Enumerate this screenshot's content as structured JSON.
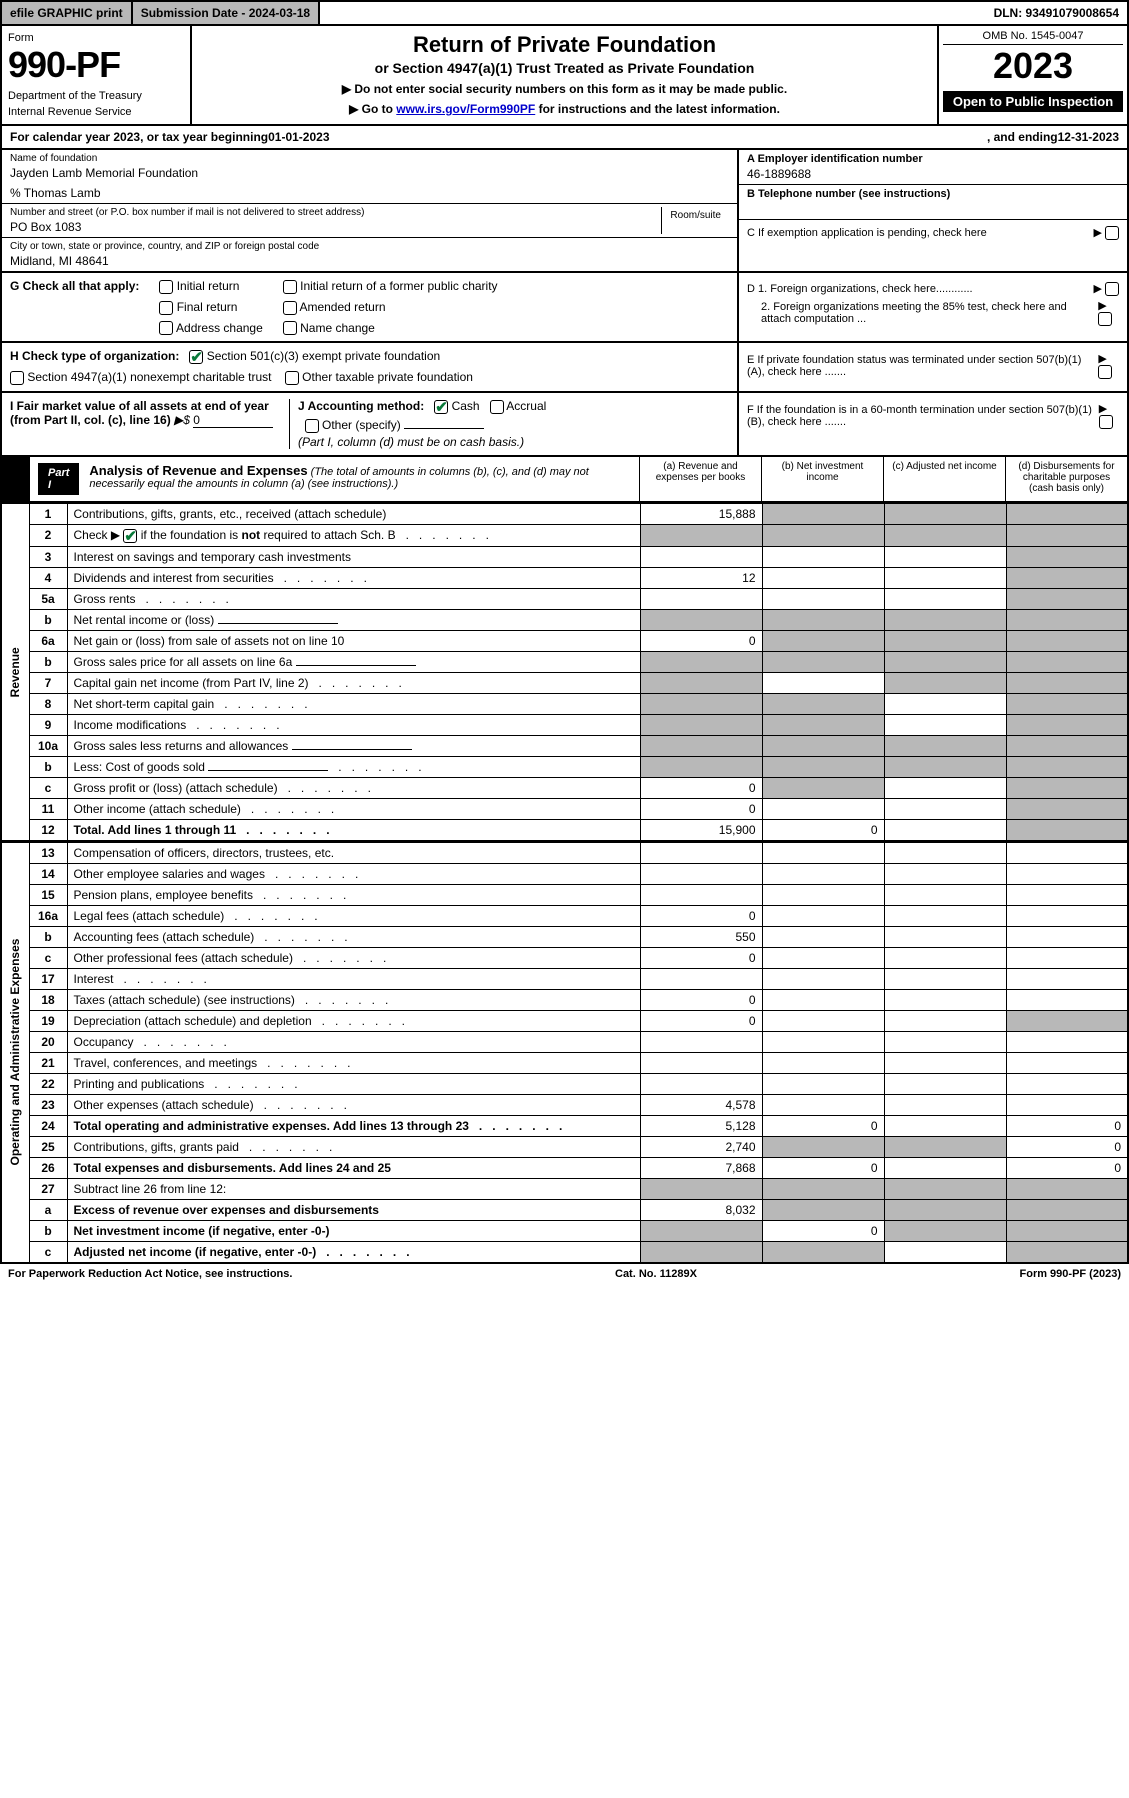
{
  "topbar": {
    "efile": "efile GRAPHIC print",
    "submission": "Submission Date - 2024-03-18",
    "dln": "DLN: 93491079008654"
  },
  "header": {
    "form_label": "Form",
    "form_num": "990-PF",
    "dept": "Department of the Treasury",
    "irs": "Internal Revenue Service",
    "title": "Return of Private Foundation",
    "subtitle": "or Section 4947(a)(1) Trust Treated as Private Foundation",
    "instr1": "▶ Do not enter social security numbers on this form as it may be made public.",
    "instr2_prefix": "▶ Go to ",
    "instr2_link": "www.irs.gov/Form990PF",
    "instr2_suffix": " for instructions and the latest information.",
    "omb": "OMB No. 1545-0047",
    "year": "2023",
    "inspection": "Open to Public Inspection"
  },
  "calyear": {
    "prefix": "For calendar year 2023, or tax year beginning ",
    "begin": "01-01-2023",
    "mid": ", and ending ",
    "end": "12-31-2023"
  },
  "foundation": {
    "name_label": "Name of foundation",
    "name": "Jayden Lamb Memorial Foundation",
    "care_of": "% Thomas Lamb",
    "addr_label": "Number and street (or P.O. box number if mail is not delivered to street address)",
    "addr": "PO Box 1083",
    "room_label": "Room/suite",
    "city_label": "City or town, state or province, country, and ZIP or foreign postal code",
    "city": "Midland, MI  48641"
  },
  "right_info": {
    "a_label": "A Employer identification number",
    "a_val": "46-1889688",
    "b_label": "B Telephone number (see instructions)",
    "c_label": "C If exemption application is pending, check here",
    "d1": "D 1. Foreign organizations, check here............",
    "d2": "2. Foreign organizations meeting the 85% test, check here and attach computation ...",
    "e": "E  If private foundation status was terminated under section 507(b)(1)(A), check here .......",
    "f": "F  If the foundation is in a 60-month termination under section 507(b)(1)(B), check here .......",
    "arrow": "▶"
  },
  "g": {
    "label": "G Check all that apply:",
    "initial": "Initial return",
    "final": "Final return",
    "address": "Address change",
    "initial_former": "Initial return of a former public charity",
    "amended": "Amended return",
    "name_change": "Name change"
  },
  "h": {
    "label": "H Check type of organization:",
    "sec501": "Section 501(c)(3) exempt private foundation",
    "sec4947": "Section 4947(a)(1) nonexempt charitable trust",
    "other_tax": "Other taxable private foundation"
  },
  "i": {
    "label": "I Fair market value of all assets at end of year (from Part II, col. (c), line 16)",
    "arrow": "▶$",
    "val": "0"
  },
  "j": {
    "label": "J Accounting method:",
    "cash": "Cash",
    "accrual": "Accrual",
    "other": "Other (specify)",
    "note": "(Part I, column (d) must be on cash basis.)"
  },
  "part1": {
    "label": "Part I",
    "title": "Analysis of Revenue and Expenses",
    "note": "(The total of amounts in columns (b), (c), and (d) may not necessarily equal the amounts in column (a) (see instructions).)",
    "col_a": "(a)   Revenue and expenses per books",
    "col_b": "(b)   Net investment income",
    "col_c": "(c)   Adjusted net income",
    "col_d": "(d)   Disbursements for charitable purposes (cash basis only)"
  },
  "side": {
    "revenue": "Revenue",
    "expenses": "Operating and Administrative Expenses"
  },
  "rows": [
    {
      "n": "1",
      "label": "Contributions, gifts, grants, etc., received (attach schedule)",
      "a": "15,888",
      "b": "shaded",
      "c": "shaded",
      "d": "shaded"
    },
    {
      "n": "2",
      "label": "Check ▶ ☑ if the foundation is not required to attach Sch. B",
      "a": "shaded",
      "b": "shaded",
      "c": "shaded",
      "d": "shaded",
      "dots": true,
      "hascheck": true
    },
    {
      "n": "3",
      "label": "Interest on savings and temporary cash investments",
      "a": "",
      "b": "",
      "c": "",
      "d": "shaded"
    },
    {
      "n": "4",
      "label": "Dividends and interest from securities",
      "a": "12",
      "b": "",
      "c": "",
      "d": "shaded",
      "dots": true
    },
    {
      "n": "5a",
      "label": "Gross rents",
      "a": "",
      "b": "",
      "c": "",
      "d": "shaded",
      "dots": true
    },
    {
      "n": "b",
      "label": "Net rental income or (loss)",
      "a": "shaded",
      "b": "shaded",
      "c": "shaded",
      "d": "shaded",
      "inline": true
    },
    {
      "n": "6a",
      "label": "Net gain or (loss) from sale of assets not on line 10",
      "a": "0",
      "b": "shaded",
      "c": "shaded",
      "d": "shaded"
    },
    {
      "n": "b",
      "label": "Gross sales price for all assets on line 6a",
      "a": "shaded",
      "b": "shaded",
      "c": "shaded",
      "d": "shaded",
      "inline": true
    },
    {
      "n": "7",
      "label": "Capital gain net income (from Part IV, line 2)",
      "a": "shaded",
      "b": "",
      "c": "shaded",
      "d": "shaded",
      "dots": true
    },
    {
      "n": "8",
      "label": "Net short-term capital gain",
      "a": "shaded",
      "b": "shaded",
      "c": "",
      "d": "shaded",
      "dots": true
    },
    {
      "n": "9",
      "label": "Income modifications",
      "a": "shaded",
      "b": "shaded",
      "c": "",
      "d": "shaded",
      "dots": true
    },
    {
      "n": "10a",
      "label": "Gross sales less returns and allowances",
      "a": "shaded",
      "b": "shaded",
      "c": "shaded",
      "d": "shaded",
      "inline": true
    },
    {
      "n": "b",
      "label": "Less: Cost of goods sold",
      "a": "shaded",
      "b": "shaded",
      "c": "shaded",
      "d": "shaded",
      "dots": true,
      "inline": true
    },
    {
      "n": "c",
      "label": "Gross profit or (loss) (attach schedule)",
      "a": "0",
      "b": "shaded",
      "c": "",
      "d": "shaded",
      "dots": true
    },
    {
      "n": "11",
      "label": "Other income (attach schedule)",
      "a": "0",
      "b": "",
      "c": "",
      "d": "shaded",
      "dots": true
    },
    {
      "n": "12",
      "label": "Total. Add lines 1 through 11",
      "a": "15,900",
      "b": "0",
      "c": "",
      "d": "shaded",
      "bold": true,
      "dots": true
    }
  ],
  "exp_rows": [
    {
      "n": "13",
      "label": "Compensation of officers, directors, trustees, etc.",
      "a": "",
      "b": "",
      "c": "",
      "d": ""
    },
    {
      "n": "14",
      "label": "Other employee salaries and wages",
      "a": "",
      "b": "",
      "c": "",
      "d": "",
      "dots": true
    },
    {
      "n": "15",
      "label": "Pension plans, employee benefits",
      "a": "",
      "b": "",
      "c": "",
      "d": "",
      "dots": true
    },
    {
      "n": "16a",
      "label": "Legal fees (attach schedule)",
      "a": "0",
      "b": "",
      "c": "",
      "d": "",
      "dots": true
    },
    {
      "n": "b",
      "label": "Accounting fees (attach schedule)",
      "a": "550",
      "b": "",
      "c": "",
      "d": "",
      "dots": true
    },
    {
      "n": "c",
      "label": "Other professional fees (attach schedule)",
      "a": "0",
      "b": "",
      "c": "",
      "d": "",
      "dots": true
    },
    {
      "n": "17",
      "label": "Interest",
      "a": "",
      "b": "",
      "c": "",
      "d": "",
      "dots": true
    },
    {
      "n": "18",
      "label": "Taxes (attach schedule) (see instructions)",
      "a": "0",
      "b": "",
      "c": "",
      "d": "",
      "dots": true
    },
    {
      "n": "19",
      "label": "Depreciation (attach schedule) and depletion",
      "a": "0",
      "b": "",
      "c": "",
      "d": "shaded",
      "dots": true
    },
    {
      "n": "20",
      "label": "Occupancy",
      "a": "",
      "b": "",
      "c": "",
      "d": "",
      "dots": true
    },
    {
      "n": "21",
      "label": "Travel, conferences, and meetings",
      "a": "",
      "b": "",
      "c": "",
      "d": "",
      "dots": true
    },
    {
      "n": "22",
      "label": "Printing and publications",
      "a": "",
      "b": "",
      "c": "",
      "d": "",
      "dots": true
    },
    {
      "n": "23",
      "label": "Other expenses (attach schedule)",
      "a": "4,578",
      "b": "",
      "c": "",
      "d": "",
      "dots": true
    },
    {
      "n": "24",
      "label": "Total operating and administrative expenses. Add lines 13 through 23",
      "a": "5,128",
      "b": "0",
      "c": "",
      "d": "0",
      "bold": true,
      "dots": true
    },
    {
      "n": "25",
      "label": "Contributions, gifts, grants paid",
      "a": "2,740",
      "b": "shaded",
      "c": "shaded",
      "d": "0",
      "dots": true
    },
    {
      "n": "26",
      "label": "Total expenses and disbursements. Add lines 24 and 25",
      "a": "7,868",
      "b": "0",
      "c": "",
      "d": "0",
      "bold": true
    },
    {
      "n": "27",
      "label": "Subtract line 26 from line 12:",
      "a": "shaded",
      "b": "shaded",
      "c": "shaded",
      "d": "shaded"
    },
    {
      "n": "a",
      "label": "Excess of revenue over expenses and disbursements",
      "a": "8,032",
      "b": "shaded",
      "c": "shaded",
      "d": "shaded",
      "bold": true
    },
    {
      "n": "b",
      "label": "Net investment income (if negative, enter -0-)",
      "a": "shaded",
      "b": "0",
      "c": "shaded",
      "d": "shaded",
      "bold": true
    },
    {
      "n": "c",
      "label": "Adjusted net income (if negative, enter -0-)",
      "a": "shaded",
      "b": "shaded",
      "c": "",
      "d": "shaded",
      "bold": true,
      "dots": true
    }
  ],
  "footer": {
    "left": "For Paperwork Reduction Act Notice, see instructions.",
    "mid": "Cat. No. 11289X",
    "right": "Form 990-PF (2023)"
  }
}
